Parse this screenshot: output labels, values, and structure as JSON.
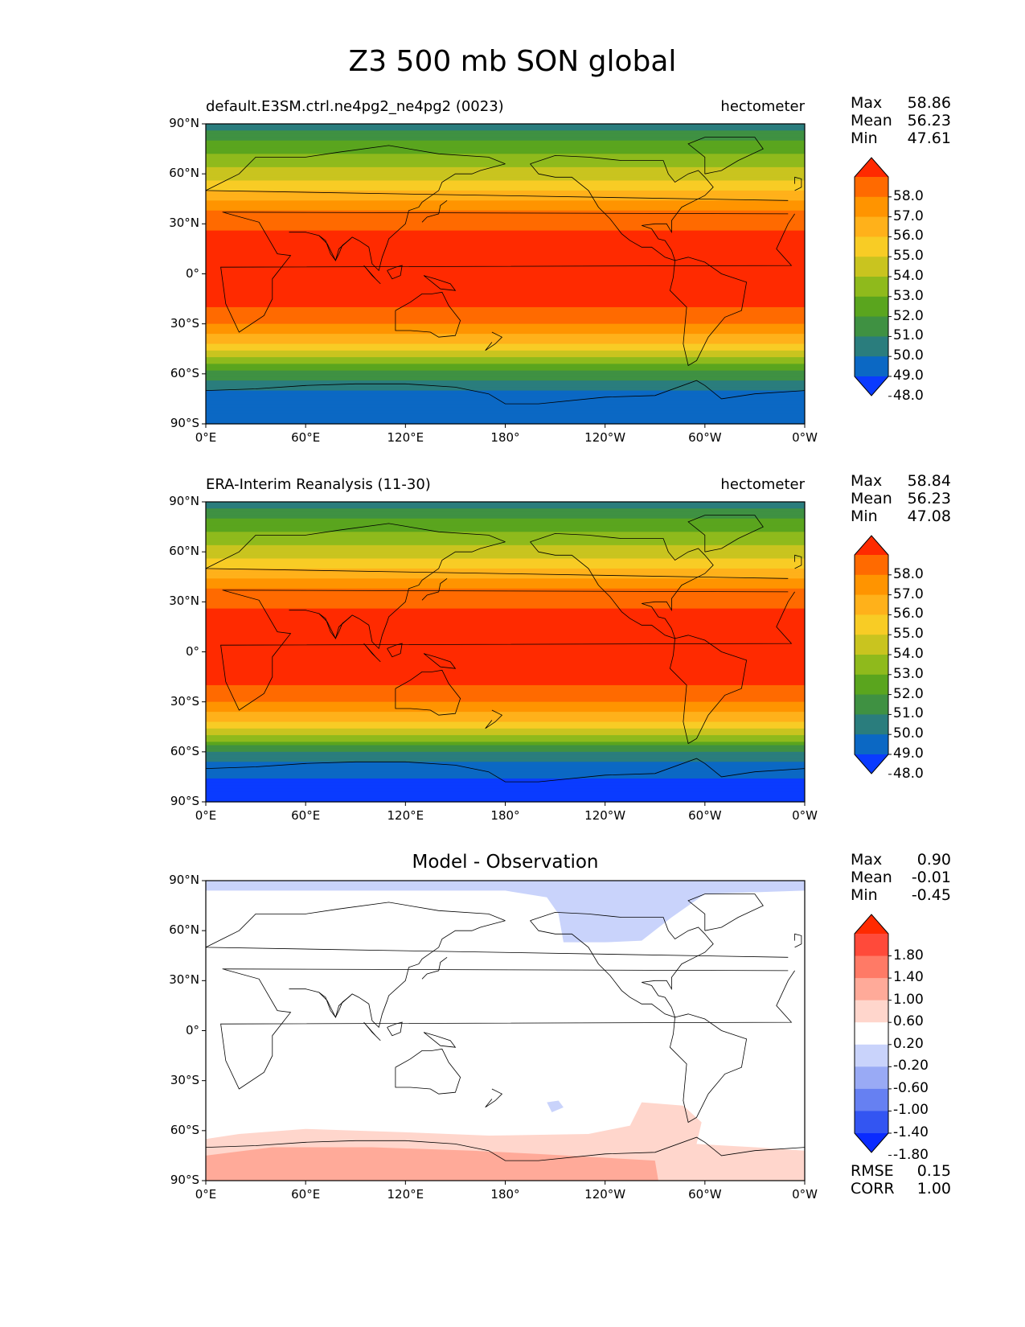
{
  "figure": {
    "title": "Z3 500 mb SON global"
  },
  "panels": [
    {
      "left_title": "default.E3SM.ctrl.ne4pg2_ne4pg2 (0023)",
      "center_title": "",
      "units": "hectometer",
      "stats": [
        {
          "label": "Max",
          "value": "58.86"
        },
        {
          "label": "Mean",
          "value": "56.23"
        },
        {
          "label": "Min",
          "value": "47.61"
        }
      ],
      "colorbar": {
        "labels": [
          "58.0",
          "57.0",
          "56.0",
          "55.0",
          "54.0",
          "53.0",
          "52.0",
          "51.0",
          "50.0",
          "49.0",
          "48.0"
        ],
        "colors": [
          "#ff2a00",
          "#ff6a00",
          "#ff9400",
          "#ffb11a",
          "#f8cc25",
          "#c9c41f",
          "#8fba1c",
          "#5aa51e",
          "#3f9142",
          "#2a7d7d",
          "#0b68c4",
          "#0a3bff"
        ]
      }
    },
    {
      "left_title": "ERA-Interim Reanalysis (11-30)",
      "center_title": "",
      "units": "hectometer",
      "stats": [
        {
          "label": "Max",
          "value": "58.84"
        },
        {
          "label": "Mean",
          "value": "56.23"
        },
        {
          "label": "Min",
          "value": "47.08"
        }
      ],
      "colorbar": {
        "labels": [
          "58.0",
          "57.0",
          "56.0",
          "55.0",
          "54.0",
          "53.0",
          "52.0",
          "51.0",
          "50.0",
          "49.0",
          "48.0"
        ],
        "colors": [
          "#ff2a00",
          "#ff6a00",
          "#ff9400",
          "#ffb11a",
          "#f8cc25",
          "#c9c41f",
          "#8fba1c",
          "#5aa51e",
          "#3f9142",
          "#2a7d7d",
          "#0b68c4",
          "#0a3bff"
        ]
      }
    },
    {
      "left_title": "",
      "center_title": "Model - Observation",
      "units": "",
      "stats": [
        {
          "label": "Max",
          "value": "0.90"
        },
        {
          "label": "Mean",
          "value": "-0.01"
        },
        {
          "label": "Min",
          "value": "-0.45"
        }
      ],
      "extra_stats": [
        {
          "label": "RMSE",
          "value": "0.15"
        },
        {
          "label": "CORR",
          "value": "1.00"
        }
      ],
      "colorbar": {
        "labels": [
          "1.80",
          "1.40",
          "1.00",
          "0.60",
          "0.20",
          "-0.20",
          "-0.60",
          "-1.00",
          "-1.40",
          "-1.80"
        ],
        "colors": [
          "#ff2a00",
          "#ff4a3a",
          "#ff7a66",
          "#ffaa99",
          "#ffd6cc",
          "#ffffff",
          "#c9d3fb",
          "#99aaf5",
          "#6680f2",
          "#3355f2",
          "#0a2bff"
        ]
      }
    }
  ],
  "axes": {
    "y_ticks": [
      "90°N",
      "60°N",
      "30°N",
      "0°",
      "30°S",
      "60°S",
      "90°S"
    ],
    "x_ticks": [
      "0°E",
      "60°E",
      "120°E",
      "180°",
      "120°W",
      "60°W",
      "0°W"
    ]
  },
  "chart_data": [
    {
      "type": "heatmap",
      "title": "default.E3SM.ctrl.ne4pg2_ne4pg2 (0023)",
      "units": "hectometer",
      "x_range_lon": [
        0,
        360
      ],
      "y_range_lat": [
        -90,
        90
      ],
      "levels": [
        48,
        49,
        50,
        51,
        52,
        53,
        54,
        55,
        56,
        57,
        58
      ],
      "zonal_profile": {
        "lat": [
          90,
          80,
          70,
          60,
          50,
          40,
          30,
          20,
          10,
          0,
          -10,
          -20,
          -30,
          -40,
          -50,
          -60,
          -70,
          -80,
          -90
        ],
        "value": [
          49.5,
          51.0,
          52.3,
          53.5,
          55.0,
          56.8,
          57.8,
          58.4,
          58.6,
          58.6,
          58.4,
          58.0,
          57.0,
          55.5,
          53.0,
          50.5,
          49.0,
          48.5,
          48.5
        ]
      },
      "stats": {
        "max": 58.86,
        "mean": 56.23,
        "min": 47.61
      }
    },
    {
      "type": "heatmap",
      "title": "ERA-Interim Reanalysis (11-30)",
      "units": "hectometer",
      "x_range_lon": [
        0,
        360
      ],
      "y_range_lat": [
        -90,
        90
      ],
      "levels": [
        48,
        49,
        50,
        51,
        52,
        53,
        54,
        55,
        56,
        57,
        58
      ],
      "zonal_profile": {
        "lat": [
          90,
          80,
          70,
          60,
          50,
          40,
          30,
          20,
          10,
          0,
          -10,
          -20,
          -30,
          -40,
          -50,
          -60,
          -70,
          -80,
          -90
        ],
        "value": [
          49.5,
          51.0,
          52.3,
          53.5,
          55.0,
          56.8,
          57.8,
          58.4,
          58.6,
          58.6,
          58.4,
          58.0,
          57.0,
          55.5,
          53.0,
          50.0,
          48.5,
          47.6,
          47.5
        ]
      },
      "stats": {
        "max": 58.84,
        "mean": 56.23,
        "min": 47.08
      }
    },
    {
      "type": "heatmap",
      "title": "Model - Observation",
      "x_range_lon": [
        0,
        360
      ],
      "y_range_lat": [
        -90,
        90
      ],
      "levels": [
        -1.8,
        -1.4,
        -1.0,
        -0.6,
        -0.2,
        0.2,
        0.6,
        1.0,
        1.4,
        1.8
      ],
      "stats": {
        "max": 0.9,
        "mean": -0.01,
        "min": -0.45,
        "rmse": 0.15,
        "corr": 1.0
      }
    }
  ]
}
